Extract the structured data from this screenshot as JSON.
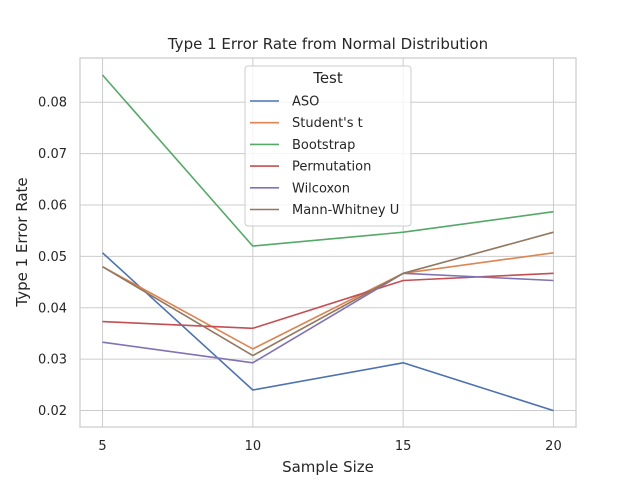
{
  "chart_data": {
    "type": "line",
    "title": "Type 1 Error Rate from Normal Distribution",
    "xlabel": "Sample Size",
    "ylabel": "Type 1 Error Rate",
    "x": [
      5,
      10,
      15,
      20
    ],
    "xticks": [
      "5",
      "10",
      "15",
      "20"
    ],
    "yticks": [
      "0.02",
      "0.03",
      "0.04",
      "0.05",
      "0.06",
      "0.07",
      "0.08"
    ],
    "xlim": [
      4.25,
      20.75
    ],
    "ylim": [
      0.0168,
      0.0886
    ],
    "grid": true,
    "legend": {
      "title": "Test",
      "position": "upper-center"
    },
    "series": [
      {
        "name": "ASO",
        "color": "#4c72b0",
        "values": [
          0.0507,
          0.024,
          0.0293,
          0.02
        ]
      },
      {
        "name": "Student's t",
        "color": "#dd8452",
        "values": [
          0.048,
          0.032,
          0.0467,
          0.0507
        ]
      },
      {
        "name": "Bootstrap",
        "color": "#55a868",
        "values": [
          0.0853,
          0.052,
          0.0547,
          0.0587
        ]
      },
      {
        "name": "Permutation",
        "color": "#c44e52",
        "values": [
          0.0373,
          0.036,
          0.0453,
          0.0467
        ]
      },
      {
        "name": "Wilcoxon",
        "color": "#8172b3",
        "values": [
          0.0333,
          0.0293,
          0.0467,
          0.0453
        ]
      },
      {
        "name": "Mann-Whitney U",
        "color": "#937860",
        "values": [
          0.048,
          0.0307,
          0.0467,
          0.0547
        ]
      }
    ]
  }
}
